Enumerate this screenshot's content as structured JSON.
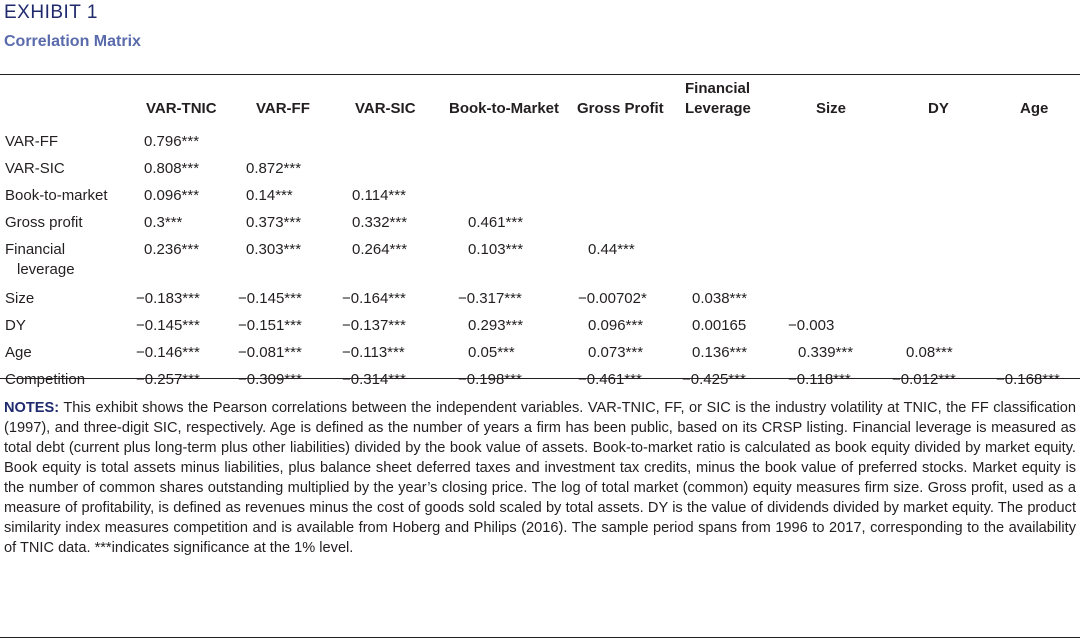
{
  "header": {
    "exhibit": "EXHIBIT 1",
    "subtitle": "Correlation Matrix"
  },
  "table": {
    "columns": [
      "",
      "VAR-TNIC",
      "VAR-FF",
      "VAR-SIC",
      "Book-to-Market",
      "Gross Profit",
      "Financial",
      "Size",
      "DY",
      "Age"
    ],
    "financial_leverage_col": {
      "line1": "Financial",
      "line2": "Leverage"
    },
    "rows": [
      {
        "label": "VAR-FF",
        "values": [
          "0.796***"
        ]
      },
      {
        "label": "VAR-SIC",
        "values": [
          "0.808***",
          "0.872***"
        ]
      },
      {
        "label": "Book-to-market",
        "values": [
          "0.096***",
          "0.14***",
          "0.114***"
        ]
      },
      {
        "label": "Gross profit",
        "values": [
          "0.3***",
          "0.373***",
          "0.332***",
          "0.461***"
        ]
      },
      {
        "label_line1": "Financial",
        "label_line2": "leverage",
        "values": [
          "0.236***",
          "0.303***",
          "0.264***",
          "0.103***",
          "0.44***"
        ]
      },
      {
        "label": "Size",
        "values": [
          "−0.183***",
          "−0.145***",
          "−0.164***",
          "−0.317***",
          "−0.00702*",
          "0.038***"
        ]
      },
      {
        "label": "DY",
        "values": [
          "−0.145***",
          "−0.151***",
          "−0.137***",
          "0.293***",
          "0.096***",
          "0.00165",
          "−0.003"
        ]
      },
      {
        "label": "Age",
        "values": [
          "−0.146***",
          "−0.081***",
          "−0.113***",
          "0.05***",
          "0.073***",
          "0.136***",
          "0.339***",
          "0.08***"
        ]
      },
      {
        "label": "Competition",
        "values": [
          "−0.257***",
          "−0.309***",
          "−0.314***",
          "−0.198***",
          "−0.461***",
          "−0.425***",
          "−0.118***",
          "−0.012***",
          "−0.168***"
        ]
      }
    ]
  },
  "notes": {
    "label": "NOTES:",
    "text": " This exhibit shows the Pearson correlations between the independent variables. VAR-TNIC, FF, or SIC is the industry volatility at TNIC, the FF classification (1997), and three-digit SIC, respectively. Age is defined as the number of years a firm has been public, based on its CRSP listing. Financial leverage is measured as total debt (current plus long-term plus other liabilities) divided by the book value of assets. Book-to-market ratio is calculated as book equity divided by market equity. Book equity is total assets minus liabilities, plus balance sheet deferred taxes and investment tax credits, minus the book value of preferred stocks. Market equity is the number of common shares outstanding multiplied by the year’s closing price. The log of total market (common) equity measures firm size. Gross profit, used as a measure of profitability, is defined as revenues minus the cost of goods sold scaled by total assets. DY is the value of dividends divided by market equity. The product similarity index measures competition and is available from Hoberg and Philips (2016). The sample period spans from 1996 to 2017, corresponding to the availability of TNIC data. ***indicates significance at the 1% level."
  },
  "colors": {
    "exhibit": "#1f2a6d",
    "subtitle": "#5a6bab",
    "text": "#231f20"
  }
}
